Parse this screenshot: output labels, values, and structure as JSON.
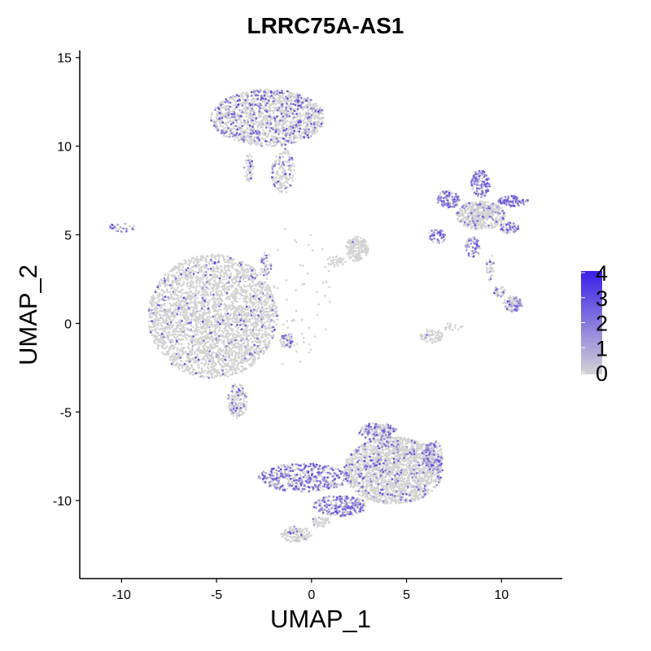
{
  "chart_data": {
    "type": "scatter",
    "title": "LRRC75A-AS1",
    "xlabel": "UMAP_1",
    "ylabel": "UMAP_2",
    "xlim": [
      -12.2,
      13.2
    ],
    "ylim": [
      -14.4,
      15.4
    ],
    "xticks": [
      -10,
      -5,
      0,
      5,
      10
    ],
    "yticks": [
      -10,
      -5,
      0,
      5,
      10,
      15
    ],
    "xtick_labels": [
      "-10",
      "-5",
      "0",
      "5",
      "10"
    ],
    "ytick_labels": [
      "-10",
      "-5",
      "0",
      "5",
      "10",
      "15"
    ],
    "grid": false,
    "legend": {
      "placement": "right",
      "type": "colorbar",
      "range": [
        0,
        4
      ],
      "ticks": [
        0,
        1,
        2,
        3,
        4
      ],
      "tick_labels": [
        "0",
        "1",
        "2",
        "3",
        "4"
      ],
      "low_color": "#d3d3d3",
      "high_color": "#3a1ee8"
    },
    "clusters": [
      {
        "name": "",
        "cx": -2.3,
        "cy": 11.6,
        "rx": 3.0,
        "ry": 1.6,
        "n": 1400,
        "expr_frac": 0.22
      },
      {
        "name": "",
        "cx": -1.5,
        "cy": 8.6,
        "rx": 0.6,
        "ry": 1.3,
        "n": 160,
        "expr_frac": 0.18
      },
      {
        "name": "",
        "cx": -3.3,
        "cy": 8.8,
        "rx": 0.25,
        "ry": 0.8,
        "n": 60,
        "expr_frac": 0.2
      },
      {
        "name": "",
        "cx": -5.2,
        "cy": 0.4,
        "rx": 3.4,
        "ry": 3.5,
        "n": 3000,
        "expr_frac": 0.05
      },
      {
        "name": "",
        "cx": -3.9,
        "cy": -4.4,
        "rx": 0.5,
        "ry": 1.0,
        "n": 150,
        "expr_frac": 0.2
      },
      {
        "name": "",
        "cx": -1.3,
        "cy": -1.0,
        "rx": 0.35,
        "ry": 0.4,
        "n": 50,
        "expr_frac": 0.35
      },
      {
        "name": "",
        "cx": -2.4,
        "cy": 3.3,
        "rx": 0.3,
        "ry": 0.7,
        "n": 40,
        "expr_frac": 0.3
      },
      {
        "name": "",
        "cx": -10.0,
        "cy": 5.4,
        "rx": 0.8,
        "ry": 0.25,
        "n": 30,
        "expr_frac": 0.5
      },
      {
        "name": "",
        "cx": 2.4,
        "cy": 4.2,
        "rx": 0.6,
        "ry": 0.7,
        "n": 180,
        "expr_frac": 0.02
      },
      {
        "name": "",
        "cx": 1.3,
        "cy": 3.5,
        "rx": 0.5,
        "ry": 0.3,
        "n": 40,
        "expr_frac": 0.02
      },
      {
        "name": "",
        "cx": 4.3,
        "cy": -8.3,
        "rx": 2.6,
        "ry": 1.9,
        "n": 1900,
        "expr_frac": 0.1
      },
      {
        "name": "",
        "cx": -0.4,
        "cy": -8.7,
        "rx": 2.4,
        "ry": 0.8,
        "n": 500,
        "expr_frac": 0.55
      },
      {
        "name": "",
        "cx": 1.5,
        "cy": -10.3,
        "rx": 1.4,
        "ry": 0.6,
        "n": 250,
        "expr_frac": 0.6
      },
      {
        "name": "",
        "cx": 3.5,
        "cy": -6.1,
        "rx": 1.0,
        "ry": 0.5,
        "n": 200,
        "expr_frac": 0.3
      },
      {
        "name": "",
        "cx": 6.4,
        "cy": -7.5,
        "rx": 0.5,
        "ry": 0.9,
        "n": 180,
        "expr_frac": 0.35
      },
      {
        "name": "",
        "cx": -0.8,
        "cy": -11.9,
        "rx": 0.8,
        "ry": 0.45,
        "n": 120,
        "expr_frac": 0.1
      },
      {
        "name": "",
        "cx": 0.5,
        "cy": -11.2,
        "rx": 0.5,
        "ry": 0.3,
        "n": 50,
        "expr_frac": 0.1
      },
      {
        "name": "",
        "cx": 8.9,
        "cy": 6.1,
        "rx": 1.3,
        "ry": 0.8,
        "n": 500,
        "expr_frac": 0.1
      },
      {
        "name": "",
        "cx": 8.9,
        "cy": 7.9,
        "rx": 0.5,
        "ry": 0.8,
        "n": 120,
        "expr_frac": 0.75
      },
      {
        "name": "",
        "cx": 7.2,
        "cy": 7.0,
        "rx": 0.6,
        "ry": 0.5,
        "n": 110,
        "expr_frac": 0.7
      },
      {
        "name": "",
        "cx": 10.6,
        "cy": 6.9,
        "rx": 0.8,
        "ry": 0.3,
        "n": 90,
        "expr_frac": 0.7
      },
      {
        "name": "",
        "cx": 10.4,
        "cy": 5.4,
        "rx": 0.5,
        "ry": 0.3,
        "n": 60,
        "expr_frac": 0.6
      },
      {
        "name": "",
        "cx": 6.6,
        "cy": 4.9,
        "rx": 0.5,
        "ry": 0.4,
        "n": 50,
        "expr_frac": 0.6
      },
      {
        "name": "",
        "cx": 8.5,
        "cy": 4.3,
        "rx": 0.4,
        "ry": 0.6,
        "n": 60,
        "expr_frac": 0.55
      },
      {
        "name": "",
        "cx": 9.4,
        "cy": 3.2,
        "rx": 0.2,
        "ry": 0.8,
        "n": 30,
        "expr_frac": 0.05
      },
      {
        "name": "",
        "cx": 10.6,
        "cy": 1.1,
        "rx": 0.5,
        "ry": 0.45,
        "n": 130,
        "expr_frac": 0.25
      },
      {
        "name": "",
        "cx": 9.9,
        "cy": 1.8,
        "rx": 0.3,
        "ry": 0.3,
        "n": 30,
        "expr_frac": 0.3
      },
      {
        "name": "",
        "cx": 6.3,
        "cy": -0.7,
        "rx": 0.6,
        "ry": 0.4,
        "n": 70,
        "expr_frac": 0.05
      },
      {
        "name": "",
        "cx": 7.4,
        "cy": -0.2,
        "rx": 0.6,
        "ry": 0.2,
        "n": 20,
        "expr_frac": 0.05
      },
      {
        "name": "",
        "cx": -0.9,
        "cy": 1.5,
        "rx": 2.0,
        "ry": 4.0,
        "n": 70,
        "expr_frac": 0.05
      }
    ]
  }
}
